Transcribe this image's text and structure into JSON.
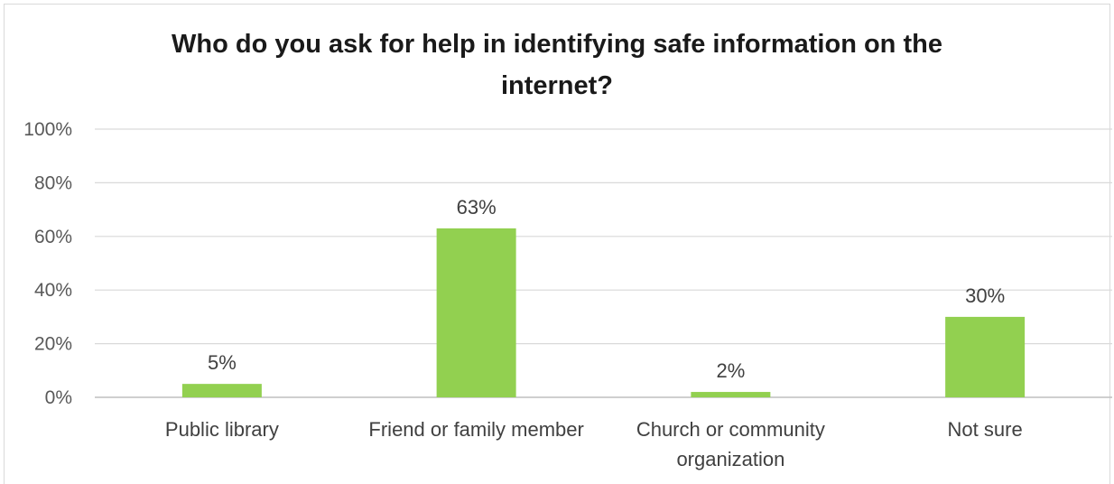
{
  "chart_data": {
    "type": "bar",
    "title": "Who do you ask for help in identifying safe information on the internet?",
    "title_lines": [
      "Who do you ask for help in identifying safe information on the",
      "internet?"
    ],
    "categories": [
      "Public library",
      "Friend or family member",
      "Church or community organization",
      "Not sure"
    ],
    "category_lines": [
      [
        "Public library"
      ],
      [
        "Friend or family member"
      ],
      [
        "Church or community",
        "organization"
      ],
      [
        "Not sure"
      ]
    ],
    "values": [
      5,
      63,
      2,
      30
    ],
    "value_labels": [
      "5%",
      "63%",
      "2%",
      "30%"
    ],
    "yticks": [
      0,
      20,
      40,
      60,
      80,
      100
    ],
    "ytick_labels": [
      "0%",
      "20%",
      "40%",
      "60%",
      "80%",
      "100%"
    ],
    "ylim": [
      0,
      100
    ],
    "xlabel": "",
    "ylabel": "",
    "grid": true,
    "legend": "none",
    "bar_color": "#92d050",
    "grid_color": "#d9d9d9"
  }
}
